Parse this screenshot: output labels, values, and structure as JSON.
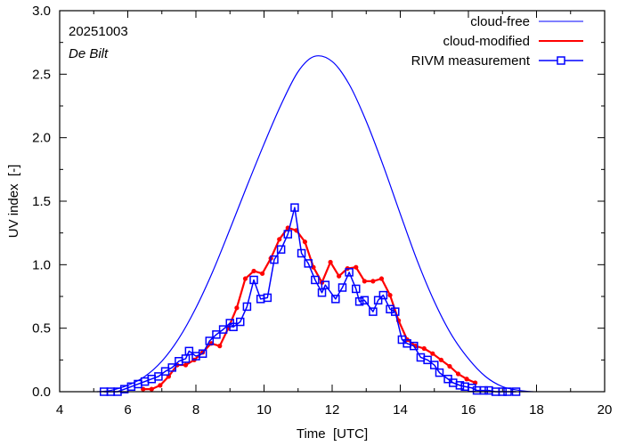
{
  "chart_data": {
    "type": "line",
    "title": "",
    "annotation_date": "20251003",
    "annotation_location": "De Bilt",
    "xlabel": "Time  [UTC]",
    "ylabel": "UV index  [-]",
    "xlim": [
      4,
      20
    ],
    "ylim": [
      0,
      3.0
    ],
    "x_ticks": [
      "4",
      "6",
      "8",
      "10",
      "12",
      "14",
      "16",
      "18",
      "20"
    ],
    "x_tick_values": [
      4,
      6,
      8,
      10,
      12,
      14,
      16,
      18,
      20
    ],
    "y_ticks": [
      "0.0",
      "0.5",
      "1.0",
      "1.5",
      "2.0",
      "2.5",
      "3.0"
    ],
    "y_tick_values": [
      0,
      0.5,
      1.0,
      1.5,
      2.0,
      2.5,
      3.0
    ],
    "legend_position": "top-right",
    "series": [
      {
        "name": "cloud-free",
        "color": "#0000ff",
        "style": "line",
        "x": [
          5.1,
          5.5,
          6.0,
          6.5,
          7.0,
          7.5,
          8.0,
          8.5,
          9.0,
          9.5,
          10.0,
          10.5,
          11.0,
          11.48,
          12.0,
          12.5,
          13.0,
          13.5,
          14.0,
          14.5,
          15.0,
          15.5,
          16.0,
          16.5,
          17.0,
          17.5,
          17.9
        ],
        "y": [
          0.0,
          0.01,
          0.05,
          0.12,
          0.24,
          0.42,
          0.66,
          0.95,
          1.28,
          1.62,
          1.95,
          2.26,
          2.52,
          2.64,
          2.6,
          2.42,
          2.13,
          1.78,
          1.4,
          1.03,
          0.71,
          0.45,
          0.26,
          0.12,
          0.04,
          0.01,
          0.0
        ]
      },
      {
        "name": "cloud-modified",
        "color": "#ff0000",
        "style": "line-dot",
        "x": [
          6.45,
          6.7,
          6.95,
          7.2,
          7.45,
          7.7,
          7.95,
          8.2,
          8.45,
          8.7,
          8.95,
          9.2,
          9.45,
          9.7,
          9.95,
          10.2,
          10.45,
          10.7,
          10.95,
          11.2,
          11.45,
          11.7,
          11.95,
          12.2,
          12.45,
          12.7,
          12.95,
          13.2,
          13.45,
          13.7,
          13.95,
          14.2,
          14.45,
          14.7,
          14.95,
          15.2,
          15.45,
          15.7,
          15.95,
          16.2
        ],
        "y": [
          0.02,
          0.02,
          0.05,
          0.12,
          0.21,
          0.21,
          0.25,
          0.31,
          0.38,
          0.36,
          0.5,
          0.66,
          0.89,
          0.95,
          0.93,
          1.05,
          1.2,
          1.29,
          1.27,
          1.18,
          0.98,
          0.86,
          1.02,
          0.91,
          0.97,
          0.98,
          0.87,
          0.87,
          0.89,
          0.76,
          0.56,
          0.41,
          0.36,
          0.34,
          0.3,
          0.25,
          0.2,
          0.14,
          0.1,
          0.07
        ]
      },
      {
        "name": "RIVM measurement",
        "color": "#0000ff",
        "style": "line-square",
        "x": [
          5.3,
          5.5,
          5.7,
          5.9,
          6.1,
          6.3,
          6.5,
          6.7,
          6.9,
          7.1,
          7.3,
          7.5,
          7.7,
          7.8,
          8.0,
          8.2,
          8.4,
          8.6,
          8.8,
          9.0,
          9.1,
          9.3,
          9.5,
          9.7,
          9.9,
          10.1,
          10.3,
          10.5,
          10.7,
          10.9,
          11.1,
          11.3,
          11.5,
          11.7,
          11.8,
          12.1,
          12.3,
          12.5,
          12.7,
          12.8,
          12.95,
          13.2,
          13.35,
          13.5,
          13.7,
          13.85,
          14.05,
          14.2,
          14.4,
          14.6,
          14.8,
          15.0,
          15.15,
          15.4,
          15.55,
          15.75,
          15.9,
          16.1,
          16.25,
          16.45,
          16.6,
          16.8,
          17.0,
          17.15,
          17.4
        ],
        "y": [
          0.0,
          0.0,
          0.0,
          0.02,
          0.04,
          0.06,
          0.08,
          0.1,
          0.12,
          0.16,
          0.19,
          0.24,
          0.26,
          0.32,
          0.28,
          0.3,
          0.4,
          0.45,
          0.49,
          0.54,
          0.51,
          0.55,
          0.67,
          0.88,
          0.73,
          0.74,
          1.04,
          1.12,
          1.24,
          1.45,
          1.09,
          1.01,
          0.88,
          0.78,
          0.84,
          0.73,
          0.82,
          0.94,
          0.81,
          0.71,
          0.72,
          0.63,
          0.72,
          0.76,
          0.65,
          0.63,
          0.41,
          0.38,
          0.36,
          0.27,
          0.25,
          0.21,
          0.15,
          0.1,
          0.07,
          0.05,
          0.04,
          0.03,
          0.01,
          0.01,
          0.01,
          0.0,
          0.0,
          0.0,
          0.0
        ]
      }
    ]
  }
}
